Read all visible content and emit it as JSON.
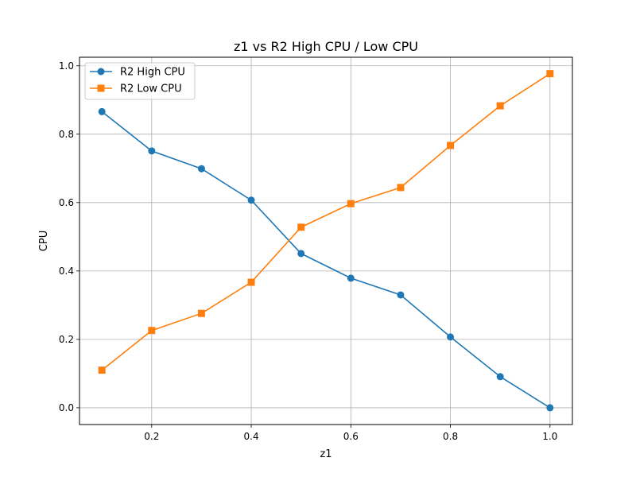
{
  "chart_data": {
    "type": "line",
    "title": "z1 vs R2 High CPU / Low CPU",
    "xlabel": "z1",
    "ylabel": "CPU",
    "xlim": [
      0.055,
      1.045
    ],
    "ylim": [
      -0.049,
      1.025
    ],
    "xticks": [
      {
        "value": 0.2,
        "label": "0.2"
      },
      {
        "value": 0.4,
        "label": "0.4"
      },
      {
        "value": 0.6,
        "label": "0.6"
      },
      {
        "value": 0.8,
        "label": "0.8"
      },
      {
        "value": 1.0,
        "label": "1.0"
      }
    ],
    "yticks": [
      {
        "value": 0.0,
        "label": "0.0"
      },
      {
        "value": 0.2,
        "label": "0.2"
      },
      {
        "value": 0.4,
        "label": "0.4"
      },
      {
        "value": 0.6,
        "label": "0.6"
      },
      {
        "value": 0.8,
        "label": "0.8"
      },
      {
        "value": 1.0,
        "label": "1.0"
      }
    ],
    "grid": true,
    "legend_position": "top-left",
    "x": [
      0.1,
      0.2,
      0.3,
      0.4,
      0.5,
      0.6,
      0.7,
      0.8,
      0.9,
      1.0
    ],
    "series": [
      {
        "name": "R2 High CPU",
        "color": "#1f77b4",
        "marker": "circle",
        "values": [
          0.866,
          0.751,
          0.699,
          0.607,
          0.451,
          0.379,
          0.33,
          0.207,
          0.091,
          0.0
        ]
      },
      {
        "name": "R2 Low CPU",
        "color": "#ff7f0e",
        "marker": "square",
        "values": [
          0.11,
          0.226,
          0.276,
          0.367,
          0.528,
          0.597,
          0.644,
          0.767,
          0.883,
          0.977
        ]
      }
    ]
  }
}
